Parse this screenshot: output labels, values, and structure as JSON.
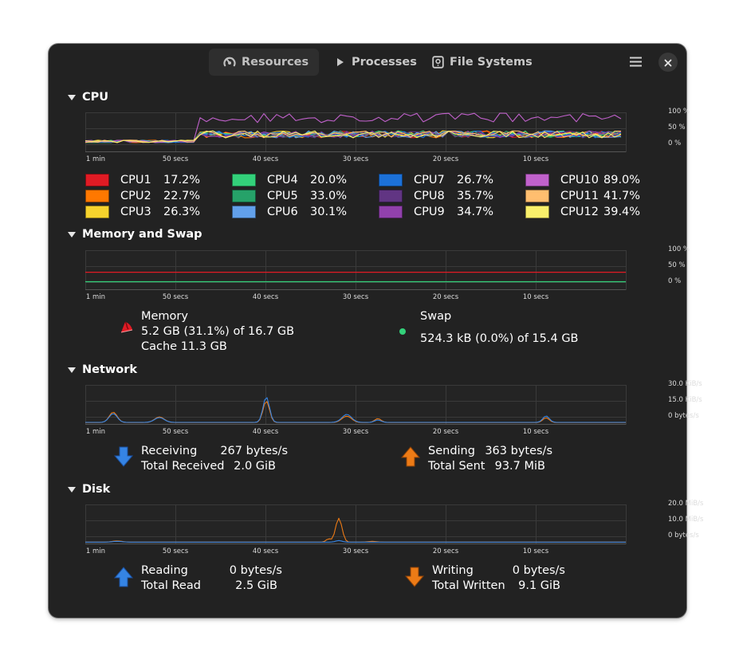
{
  "header": {
    "tabs": [
      {
        "label": "Resources",
        "icon": "speedometer-icon",
        "active": true
      },
      {
        "label": "Processes",
        "icon": "play-icon",
        "active": false
      },
      {
        "label": "File Systems",
        "icon": "disk-icon",
        "active": false
      }
    ],
    "menu_icon": "hamburger-menu-icon",
    "close_icon": "close-icon"
  },
  "time_axis": [
    "1 min",
    "50 secs",
    "40 secs",
    "30 secs",
    "20 secs",
    "10 secs"
  ],
  "sections": {
    "cpu": {
      "title": "CPU",
      "y_ticks": [
        "100 %",
        "50 %",
        "0 %"
      ],
      "cpus": [
        {
          "name": "CPU1",
          "value": "17.2%",
          "color": "#e01b24"
        },
        {
          "name": "CPU2",
          "value": "22.7%",
          "color": "#ff7800"
        },
        {
          "name": "CPU3",
          "value": "26.3%",
          "color": "#f6d32d"
        },
        {
          "name": "CPU4",
          "value": "20.0%",
          "color": "#33d17a"
        },
        {
          "name": "CPU5",
          "value": "33.0%",
          "color": "#26a269"
        },
        {
          "name": "CPU6",
          "value": "30.1%",
          "color": "#62a0ea"
        },
        {
          "name": "CPU7",
          "value": "26.7%",
          "color": "#1c71d8"
        },
        {
          "name": "CPU8",
          "value": "35.7%",
          "color": "#613583"
        },
        {
          "name": "CPU9",
          "value": "34.7%",
          "color": "#9141ac"
        },
        {
          "name": "CPU10",
          "value": "89.0%",
          "color": "#c061cb"
        },
        {
          "name": "CPU11",
          "value": "41.7%",
          "color": "#ffbe6f"
        },
        {
          "name": "CPU12",
          "value": "39.4%",
          "color": "#f9f06b"
        }
      ]
    },
    "memory": {
      "title": "Memory and Swap",
      "y_ticks": [
        "100 %",
        "50 %",
        "0 %"
      ],
      "memory_label": "Memory",
      "memory_value": "5.2 GB (31.1%) of 16.7 GB",
      "memory_cache": "Cache 11.3 GB",
      "memory_percent": 31.1,
      "memory_color": "#e01b24",
      "swap_label": "Swap",
      "swap_value": "524.3 kB (0.0%) of 15.4 GB",
      "swap_percent": 0.0,
      "swap_color": "#33d17a"
    },
    "network": {
      "title": "Network",
      "y_ticks": [
        "30.0 KiB/s",
        "15.0 KiB/s",
        "0 bytes/s"
      ],
      "receiving_label": "Receiving",
      "receiving_value": "267 bytes/s",
      "total_received_label": "Total Received",
      "total_received_value": "2.0 GiB",
      "sending_label": "Sending",
      "sending_value": "363 bytes/s",
      "total_sent_label": "Total Sent",
      "total_sent_value": "93.7 MiB",
      "receive_color": "#3584e4",
      "send_color": "#ed7b16"
    },
    "disk": {
      "title": "Disk",
      "y_ticks": [
        "20.0 MiB/s",
        "10.0 MiB/s",
        "0 bytes/s"
      ],
      "reading_label": "Reading",
      "reading_value": "0 bytes/s",
      "total_read_label": "Total Read",
      "total_read_value": "2.5 GiB",
      "writing_label": "Writing",
      "writing_value": "0 bytes/s",
      "total_written_label": "Total Written",
      "total_written_value": "9.1 GiB",
      "read_color": "#3584e4",
      "write_color": "#ed7b16"
    }
  }
}
